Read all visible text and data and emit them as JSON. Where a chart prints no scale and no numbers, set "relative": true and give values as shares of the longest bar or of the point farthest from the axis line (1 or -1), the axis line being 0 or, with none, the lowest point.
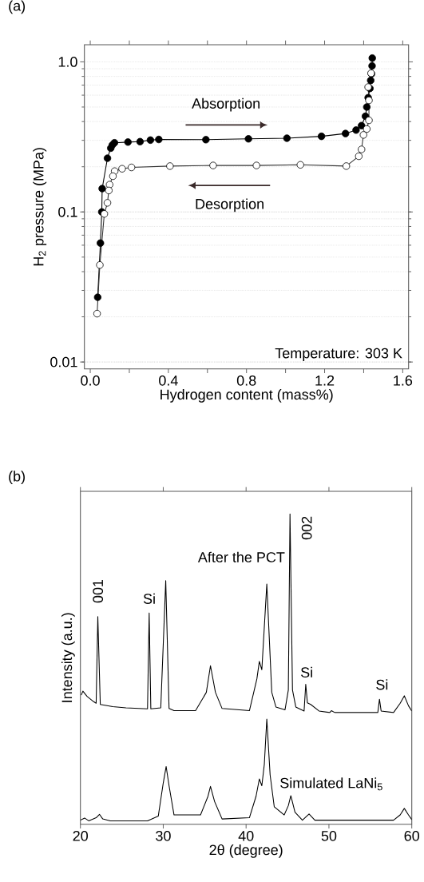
{
  "chart_data": [
    {
      "type": "line",
      "title": "(a)",
      "xlabel": "Hydrogen content (mass%)",
      "ylabel": "H$_{2}$ pressure (MPa)",
      "log": "y",
      "grid": "y",
      "marker": "circle",
      "line_style": "solid",
      "xlim": [
        -0.03,
        1.63
      ],
      "ylim": [
        0.009,
        1.3
      ],
      "xticks": [
        {
          "value": 0,
          "label": "0.0"
        },
        {
          "value": 0.2,
          "label": null
        },
        {
          "value": 0.4,
          "label": "0.4"
        },
        {
          "value": 0.6,
          "label": null
        },
        {
          "value": 0.8,
          "label": "0.8"
        },
        {
          "value": 1.0,
          "label": null
        },
        {
          "value": 1.2,
          "label": "1.2"
        },
        {
          "value": 1.4,
          "label": null
        },
        {
          "value": 1.6,
          "label": "1.6"
        }
      ],
      "yticks": [
        0.01,
        0.1,
        {
          "value": 1,
          "label": "1.0"
        }
      ],
      "annotations": [
        "Absorption",
        "Desorption",
        "Temperature: 303 K"
      ],
      "series": [
        {
          "color": "#000000",
          "x": [
            0.038,
            0.052,
            0.059,
            0.061,
            0.088,
            0.105,
            0.113,
            0.124,
            0.193,
            0.255,
            0.308,
            0.351,
            0.592,
            0.81,
            1.007,
            1.184,
            1.307,
            1.361,
            1.389,
            1.409,
            1.416,
            1.423,
            1.432,
            1.436,
            1.44,
            1.443,
            1.444
          ],
          "values": [
            0.027,
            0.062,
            0.1,
            0.143,
            0.228,
            0.266,
            0.279,
            0.289,
            0.292,
            0.294,
            0.301,
            0.304,
            0.303,
            0.307,
            0.31,
            0.319,
            0.333,
            0.351,
            0.376,
            0.434,
            0.5,
            0.577,
            0.665,
            0.752,
            0.832,
            0.94,
            1.06
          ]
        },
        {
          "color": "#333333",
          "x": [
            1.438,
            1.423,
            1.427,
            1.427,
            1.416,
            1.399,
            1.389,
            1.375,
            1.311,
            1.076,
            0.851,
            0.629,
            0.408,
            0.211,
            0.163,
            0.125,
            0.116,
            0.099,
            0.095,
            0.088,
            0.072,
            0.049,
            0.035
          ],
          "values": [
            0.84,
            0.679,
            0.554,
            0.408,
            0.357,
            0.326,
            0.261,
            0.235,
            0.202,
            0.206,
            0.204,
            0.204,
            0.202,
            0.198,
            0.194,
            0.187,
            0.173,
            0.152,
            0.139,
            0.115,
            0.097,
            0.0443,
            0.021
          ]
        }
      ]
    },
    {
      "type": "line",
      "title": "(b)",
      "xlabel": "2θ (degree)",
      "ylabel": "Intensity (a.u.)",
      "relative": true,
      "xlim": [
        20,
        60
      ],
      "xticks": [
        20,
        30,
        40,
        50,
        60
      ],
      "annotations": [
        "001",
        "Si",
        "002",
        "Si",
        "Si"
      ],
      "series": [
        {
          "name": "After the PCT",
          "color": "#000000",
          "x": [
            20.1,
            20.3,
            20.8,
            21.6,
            21.9,
            22.1,
            22.4,
            23.9,
            25.5,
            28.1,
            28.3,
            28.5,
            29.7,
            30.3,
            30.7,
            31.3,
            33.9,
            35.2,
            35.7,
            36.3,
            37.1,
            40.4,
            41.3,
            41.6,
            41.9,
            42.5,
            43.1,
            43.6,
            44.7,
            45.1,
            45.3,
            45.6,
            46.0,
            47.0,
            47.2,
            47.4,
            47.8,
            48.8,
            50.1,
            50.3,
            50.7,
            55.9,
            56.1,
            56.3,
            57.8,
            58.6,
            59.1,
            59.6,
            60.0
          ],
          "values": [
            0.416,
            0.429,
            0.412,
            0.395,
            0.39,
            0.669,
            0.386,
            0.379,
            0.375,
            0.372,
            0.681,
            0.372,
            0.375,
            0.785,
            0.373,
            0.366,
            0.366,
            0.425,
            0.511,
            0.425,
            0.373,
            0.366,
            0.468,
            0.525,
            0.498,
            0.774,
            0.425,
            0.378,
            0.369,
            0.433,
            1.0,
            0.433,
            0.378,
            0.365,
            0.451,
            0.391,
            0.386,
            0.365,
            0.36,
            0.366,
            0.36,
            0.36,
            0.403,
            0.365,
            0.36,
            0.39,
            0.414,
            0.382,
            0.365
          ]
        },
        {
          "name": "Simulated LaNi$_{5}$",
          "color": "#000000",
          "x": [
            20.0,
            20.5,
            21.0,
            21.9,
            22.3,
            22.7,
            23.6,
            28.1,
            29.4,
            30.0,
            30.35,
            30.7,
            31.3,
            34.5,
            35.4,
            35.7,
            36.2,
            37.1,
            40.4,
            41.2,
            41.6,
            41.9,
            42.2,
            42.5,
            42.9,
            43.4,
            44.6,
            45.1,
            45.4,
            45.9,
            46.8,
            47.6,
            48.3,
            57.8,
            58.6,
            59.1,
            59.6,
            60.0
          ],
          "values": [
            0.013,
            0.02,
            0.011,
            0.021,
            0.032,
            0.017,
            0.011,
            0.011,
            0.026,
            0.133,
            0.186,
            0.124,
            0.03,
            0.03,
            0.09,
            0.122,
            0.073,
            0.017,
            0.021,
            0.09,
            0.146,
            0.124,
            0.193,
            0.339,
            0.159,
            0.056,
            0.03,
            0.06,
            0.092,
            0.039,
            0.013,
            0.033,
            0.013,
            0.013,
            0.03,
            0.051,
            0.03,
            0.015
          ]
        }
      ]
    }
  ]
}
